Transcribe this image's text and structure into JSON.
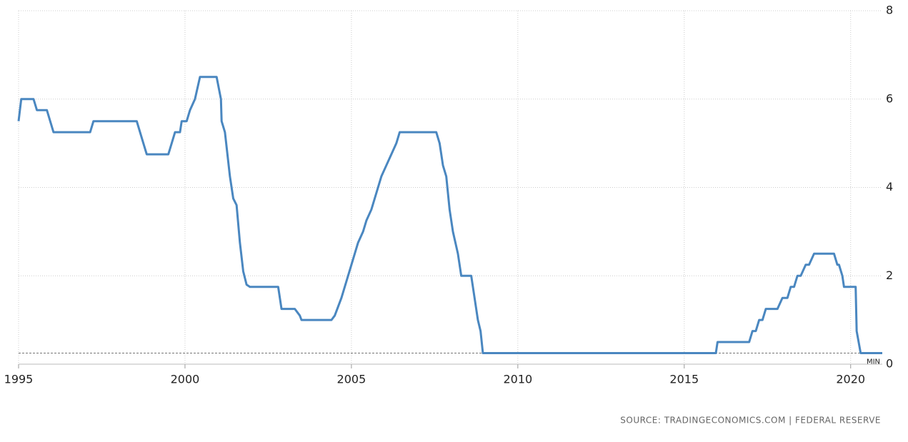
{
  "chart_data": {
    "type": "line",
    "color": "#4a87c0",
    "x": [
      1995.0,
      1995.08,
      1995.45,
      1995.55,
      1995.85,
      1995.95,
      1996.05,
      1997.15,
      1997.25,
      1998.55,
      1998.65,
      1998.75,
      1998.85,
      1999.5,
      1999.6,
      1999.7,
      1999.85,
      1999.9,
      2000.05,
      2000.15,
      2000.3,
      2000.45,
      2000.95,
      2001.08,
      2001.1,
      2001.2,
      2001.35,
      2001.45,
      2001.55,
      2001.65,
      2001.75,
      2001.85,
      2001.95,
      2002.8,
      2002.9,
      2003.3,
      2003.45,
      2003.5,
      2004.4,
      2004.5,
      2004.6,
      2004.7,
      2004.8,
      2004.9,
      2005.0,
      2005.1,
      2005.2,
      2005.35,
      2005.45,
      2005.6,
      2005.7,
      2005.8,
      2005.9,
      2006.05,
      2006.2,
      2006.35,
      2006.45,
      2007.55,
      2007.65,
      2007.75,
      2007.85,
      2007.95,
      2008.05,
      2008.2,
      2008.3,
      2008.6,
      2008.7,
      2008.8,
      2008.88,
      2008.95,
      2015.95,
      2016.0,
      2016.95,
      2017.05,
      2017.15,
      2017.25,
      2017.35,
      2017.45,
      2017.8,
      2017.95,
      2018.1,
      2018.2,
      2018.3,
      2018.4,
      2018.5,
      2018.65,
      2018.75,
      2018.9,
      2019.5,
      2019.6,
      2019.65,
      2019.75,
      2019.8,
      2020.15,
      2020.18,
      2020.3,
      2020.95
    ],
    "values": [
      5.5,
      6.0,
      6.0,
      5.75,
      5.75,
      5.5,
      5.25,
      5.25,
      5.5,
      5.5,
      5.25,
      5.0,
      4.75,
      4.75,
      5.0,
      5.25,
      5.25,
      5.5,
      5.5,
      5.75,
      6.0,
      6.5,
      6.5,
      6.0,
      5.5,
      5.25,
      4.25,
      3.75,
      3.6,
      2.75,
      2.1,
      1.8,
      1.75,
      1.75,
      1.25,
      1.25,
      1.1,
      1.0,
      1.0,
      1.1,
      1.3,
      1.5,
      1.75,
      2.0,
      2.25,
      2.5,
      2.75,
      3.0,
      3.25,
      3.5,
      3.75,
      4.0,
      4.25,
      4.5,
      4.75,
      5.0,
      5.25,
      5.25,
      5.0,
      4.5,
      4.25,
      3.5,
      3.0,
      2.5,
      2.0,
      2.0,
      1.5,
      1.0,
      0.75,
      0.25,
      0.25,
      0.5,
      0.5,
      0.75,
      0.75,
      1.0,
      1.0,
      1.25,
      1.25,
      1.5,
      1.5,
      1.75,
      1.75,
      2.0,
      2.0,
      2.25,
      2.25,
      2.5,
      2.5,
      2.25,
      2.25,
      2.0,
      1.75,
      1.75,
      0.75,
      0.25,
      0.25
    ],
    "xlim": [
      1995,
      2020.95
    ],
    "xticks": [
      1995,
      2000,
      2005,
      2010,
      2015,
      2020
    ],
    "ylim": [
      0,
      8
    ],
    "yticks": [
      0,
      2,
      4,
      6,
      8
    ],
    "grid": true,
    "min_line": {
      "value": 0.25,
      "label": "MIN"
    },
    "source": "SOURCE: TRADINGECONOMICS.COM | FEDERAL RESERVE"
  }
}
